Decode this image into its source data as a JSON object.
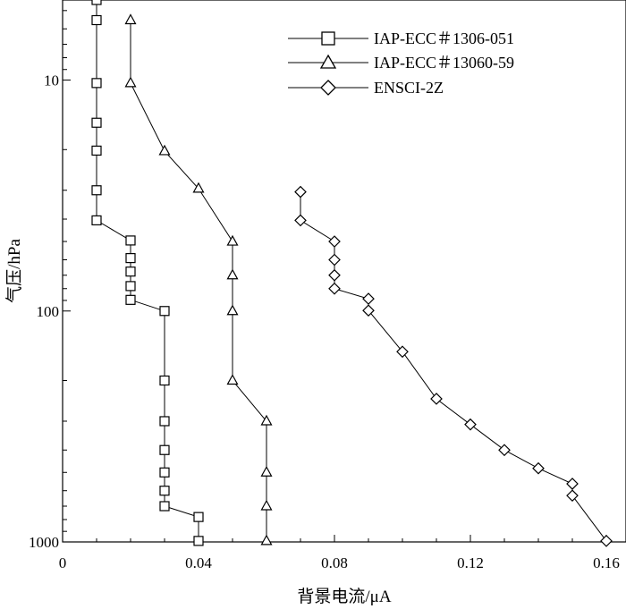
{
  "chart_data": {
    "type": "line",
    "title": "",
    "xlabel": "背景电流/μA",
    "ylabel": "气压/hPa",
    "xlim": [
      0,
      0.16
    ],
    "ylim": [
      1000,
      4.5
    ],
    "y_scale": "log",
    "y_inverted": true,
    "grid": false,
    "legend_position": "top-right",
    "x_ticks": [
      "0",
      "0.04",
      "0.08",
      "0.12",
      "0.16"
    ],
    "x_tick_values": [
      0,
      0.04,
      0.08,
      0.12,
      0.16
    ],
    "y_ticks": [
      "10",
      "100",
      "1000"
    ],
    "y_tick_values": [
      10,
      100,
      1000
    ],
    "series": [
      {
        "name": "IAP-ECC＃1306-051",
        "marker": "square",
        "points": [
          [
            0.01,
            4.5
          ],
          [
            0.01,
            5.5
          ],
          [
            0.01,
            10.3
          ],
          [
            0.01,
            15.3
          ],
          [
            0.01,
            20.2
          ],
          [
            0.01,
            30.0
          ],
          [
            0.01,
            40.5
          ],
          [
            0.02,
            49.5
          ],
          [
            0.02,
            59.0
          ],
          [
            0.02,
            67.5
          ],
          [
            0.02,
            78.0
          ],
          [
            0.02,
            89.5
          ],
          [
            0.03,
            100
          ],
          [
            0.03,
            200
          ],
          [
            0.03,
            300
          ],
          [
            0.03,
            400
          ],
          [
            0.03,
            500
          ],
          [
            0.03,
            600
          ],
          [
            0.03,
            700
          ],
          [
            0.04,
            780
          ],
          [
            0.04,
            990
          ]
        ]
      },
      {
        "name": "IAP-ECC＃13060-59",
        "marker": "triangle",
        "points": [
          [
            0.02,
            5.5
          ],
          [
            0.02,
            10.3
          ],
          [
            0.03,
            20.3
          ],
          [
            0.04,
            29.5
          ],
          [
            0.05,
            50.0
          ],
          [
            0.05,
            70.0
          ],
          [
            0.05,
            100
          ],
          [
            0.05,
            200
          ],
          [
            0.06,
            300
          ],
          [
            0.06,
            500
          ],
          [
            0.06,
            700
          ],
          [
            0.06,
            990
          ]
        ]
      },
      {
        "name": "ENSCI-2Z",
        "marker": "diamond",
        "points": [
          [
            0.07,
            30.5
          ],
          [
            0.07,
            40.5
          ],
          [
            0.08,
            50.0
          ],
          [
            0.08,
            60.0
          ],
          [
            0.08,
            70.0
          ],
          [
            0.08,
            80.0
          ],
          [
            0.09,
            88.5
          ],
          [
            0.09,
            99.5
          ],
          [
            0.1,
            150
          ],
          [
            0.11,
            240
          ],
          [
            0.12,
            310
          ],
          [
            0.13,
            400
          ],
          [
            0.14,
            480
          ],
          [
            0.15,
            560
          ],
          [
            0.15,
            630
          ],
          [
            0.16,
            990
          ]
        ]
      }
    ]
  }
}
